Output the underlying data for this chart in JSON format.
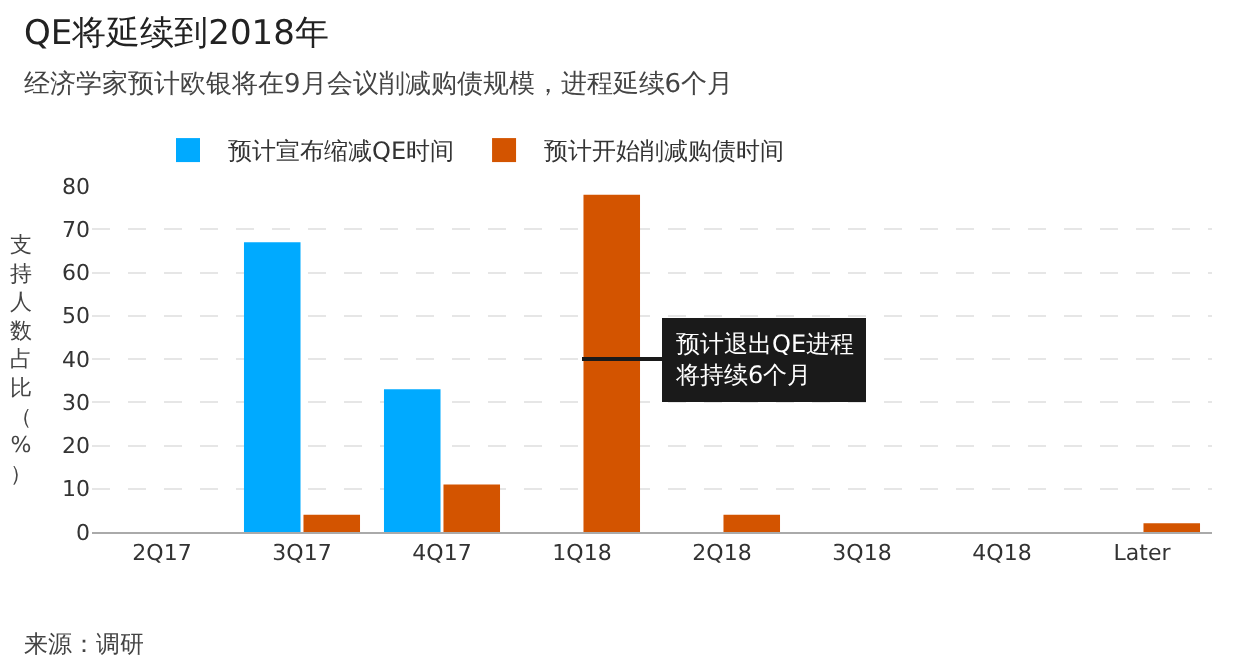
{
  "chart_data": {
    "type": "bar",
    "title": "QE将延续到2018年",
    "subtitle": "经济学家预计欧银将在9月会议削减购债规模，进程延续6个月",
    "ylabel": "支持人数占比（%）",
    "categories": [
      "2Q17",
      "3Q17",
      "4Q17",
      "1Q18",
      "2Q18",
      "3Q18",
      "4Q18",
      "Later"
    ],
    "series": [
      {
        "name": "预计宣布缩减QE时间",
        "color": "#00aaff",
        "values": [
          0,
          67,
          33,
          0,
          0,
          0,
          0,
          0
        ]
      },
      {
        "name": "预计开始削减购债时间",
        "color": "#d35400",
        "values": [
          0,
          4,
          11,
          78,
          4,
          0,
          0,
          2
        ]
      }
    ],
    "ylim": [
      0,
      80
    ],
    "yticks": [
      0,
      10,
      20,
      30,
      40,
      50,
      60,
      70,
      80
    ],
    "grid": "y",
    "legend": "top left",
    "annotations": [
      {
        "text": "预计退出QE进程将持续6个月",
        "x": "1Q18",
        "y": 40
      },
      "来源：调研"
    ]
  }
}
